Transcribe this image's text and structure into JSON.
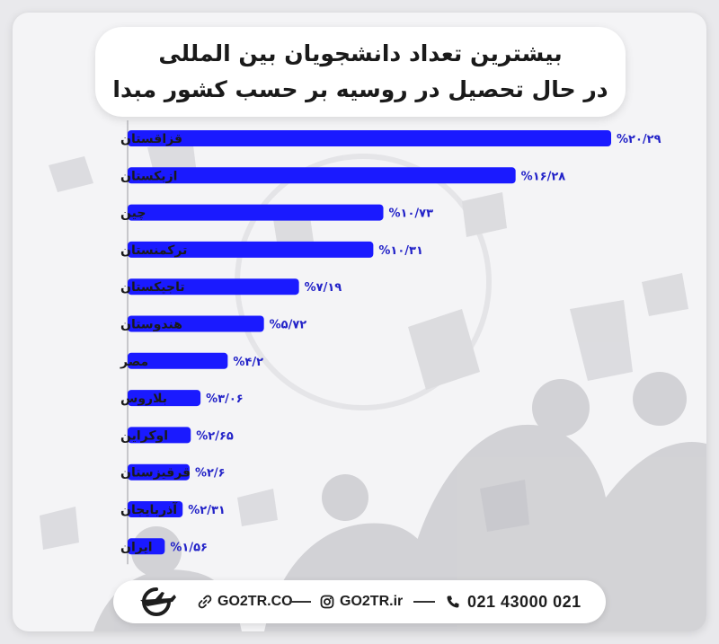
{
  "title": {
    "line1": "بیشترین تعداد دانشجویان بین المللی",
    "line2": "در حال تحصیل در روسیه بر حسب کشور مبدا"
  },
  "chart_data": {
    "type": "bar",
    "orientation": "horizontal",
    "categories": [
      "قزاقستان",
      "ازبکستان",
      "چین",
      "ترکمنستان",
      "تاجیکستان",
      "هندوستان",
      "مصر",
      "بلاروس",
      "اوکراین",
      "قرقیزستان",
      "آذربایجان",
      "ایران"
    ],
    "values": [
      20.29,
      16.28,
      10.73,
      10.31,
      7.19,
      5.72,
      4.2,
      3.06,
      2.65,
      2.6,
      2.31,
      1.56
    ],
    "value_labels": [
      "%۲۰/۲۹",
      "%۱۶/۲۸",
      "%۱۰/۷۳",
      "%۱۰/۳۱",
      "%۷/۱۹",
      "%۵/۷۲",
      "%۴/۲",
      "%۳/۰۶",
      "%۲/۶۵",
      "%۲/۶",
      "%۲/۳۱",
      "%۱/۵۶"
    ],
    "bar_color": "#1a1aff",
    "label_color": "#2323c8",
    "xlim": [
      0,
      20.29
    ],
    "legend": "none",
    "grid": false
  },
  "footer": {
    "website": "GO2TR.CO",
    "instagram": "GO2TR.ir",
    "phone": "021 43000 021",
    "icons": [
      "logo-icon",
      "link-icon",
      "instagram-icon",
      "phone-icon"
    ]
  },
  "colors": {
    "background": "#e9e9ec",
    "card": "#f4f4f6",
    "title_text": "#1a1a1a",
    "footer_text": "#1e1e1e"
  }
}
